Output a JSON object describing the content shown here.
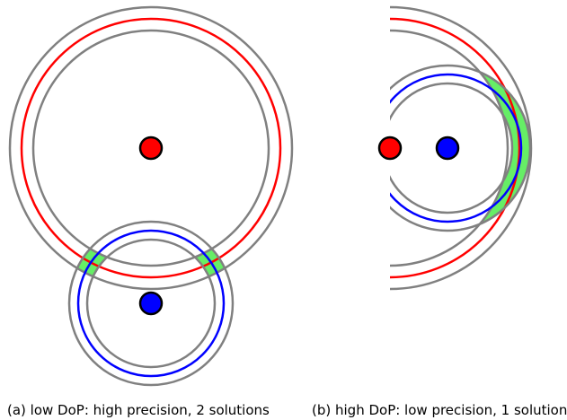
{
  "captions": {
    "a": "(a)  low DoP: high precision, 2 solutions",
    "b": "(b)  high DoP: low precision, 1 solution"
  },
  "colors": {
    "range_bound": "#808080",
    "red_range": "#ff0000",
    "blue_range": "#0000ff",
    "red_anchor": "#ff0000",
    "blue_anchor": "#0000ff",
    "intersection": "#66ee66"
  }
}
